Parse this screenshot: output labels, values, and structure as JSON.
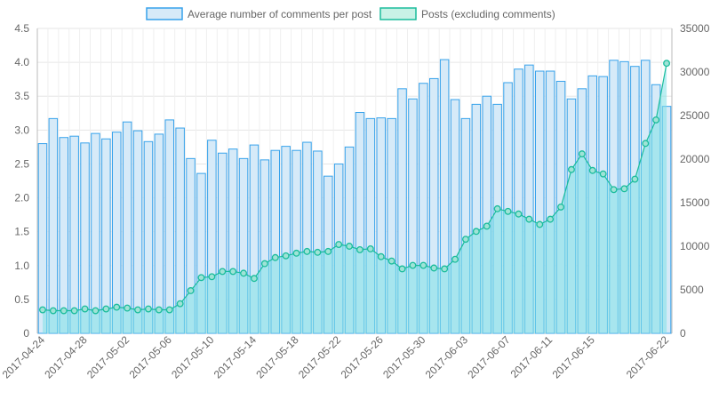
{
  "chart_data": {
    "type": "bar",
    "title": "",
    "x": [
      "2017-04-24",
      "2017-04-25",
      "2017-04-26",
      "2017-04-27",
      "2017-04-28",
      "2017-04-29",
      "2017-04-30",
      "2017-05-01",
      "2017-05-02",
      "2017-05-03",
      "2017-05-04",
      "2017-05-05",
      "2017-05-06",
      "2017-05-07",
      "2017-05-08",
      "2017-05-09",
      "2017-05-10",
      "2017-05-11",
      "2017-05-12",
      "2017-05-13",
      "2017-05-14",
      "2017-05-15",
      "2017-05-16",
      "2017-05-17",
      "2017-05-18",
      "2017-05-19",
      "2017-05-20",
      "2017-05-21",
      "2017-05-22",
      "2017-05-23",
      "2017-05-24",
      "2017-05-25",
      "2017-05-26",
      "2017-05-27",
      "2017-05-28",
      "2017-05-29",
      "2017-05-30",
      "2017-05-31",
      "2017-06-01",
      "2017-06-02",
      "2017-06-03",
      "2017-06-04",
      "2017-06-05",
      "2017-06-06",
      "2017-06-07",
      "2017-06-08",
      "2017-06-09",
      "2017-06-10",
      "2017-06-11",
      "2017-06-12",
      "2017-06-13",
      "2017-06-14",
      "2017-06-15",
      "2017-06-16",
      "2017-06-17",
      "2017-06-18",
      "2017-06-19",
      "2017-06-20",
      "2017-06-21",
      "2017-06-22"
    ],
    "x_tick_labels": [
      "2017-04-24",
      "2017-04-28",
      "2017-05-02",
      "2017-05-06",
      "2017-05-10",
      "2017-05-14",
      "2017-05-18",
      "2017-05-22",
      "2017-05-26",
      "2017-05-30",
      "2017-06-03",
      "2017-06-07",
      "2017-06-11",
      "2017-06-15",
      "2017-06-22"
    ],
    "series": [
      {
        "name": "Average number of comments per post",
        "type": "bar",
        "axis": "left",
        "color": "#36a2eb",
        "fill": "#d6eaf8",
        "values": [
          2.8,
          3.17,
          2.89,
          2.91,
          2.81,
          2.95,
          2.87,
          2.97,
          3.12,
          2.99,
          2.83,
          2.94,
          3.15,
          3.03,
          2.58,
          2.36,
          2.85,
          2.66,
          2.72,
          2.58,
          2.78,
          2.56,
          2.7,
          2.76,
          2.7,
          2.82,
          2.69,
          2.32,
          2.5,
          2.75,
          3.26,
          3.17,
          3.18,
          3.17,
          3.61,
          3.46,
          3.69,
          3.76,
          4.04,
          3.45,
          3.17,
          3.38,
          3.5,
          3.38,
          3.7,
          3.9,
          3.96,
          3.87,
          3.87,
          3.72,
          3.46,
          3.61,
          3.8,
          3.79,
          4.03,
          4.01,
          3.94,
          4.03,
          3.67,
          3.35
        ]
      },
      {
        "name": "Posts (excluding comments)",
        "type": "area",
        "axis": "right",
        "color": "#1abc9c",
        "fill": "#81e0e6",
        "values": [
          2700,
          2600,
          2600,
          2600,
          2800,
          2600,
          2800,
          3000,
          2900,
          2700,
          2800,
          2700,
          2700,
          3400,
          4900,
          6400,
          6500,
          7100,
          7100,
          6900,
          6300,
          8000,
          8700,
          8900,
          9200,
          9400,
          9300,
          9400,
          10200,
          10000,
          9600,
          9700,
          8800,
          8300,
          7400,
          7800,
          7800,
          7500,
          7400,
          8500,
          10800,
          11700,
          12300,
          14300,
          14000,
          13700,
          13100,
          12500,
          13100,
          14500,
          18800,
          20600,
          18700,
          18300,
          16500,
          16600,
          17700,
          21800,
          24500,
          31000
        ]
      }
    ],
    "y_left": {
      "min": 0,
      "max": 4.5,
      "ticks": [
        "0",
        "0.5",
        "1.0",
        "1.5",
        "2.0",
        "2.5",
        "3.0",
        "3.5",
        "4.0",
        "4.5"
      ]
    },
    "y_right": {
      "min": 0,
      "max": 35000,
      "ticks": [
        "0",
        "5000",
        "10000",
        "15000",
        "20000",
        "25000",
        "30000",
        "35000"
      ]
    },
    "grid": true,
    "legend_position": "top-center",
    "legend_box_fill": [
      "#d6eaf8",
      "#c8f2e6"
    ]
  }
}
